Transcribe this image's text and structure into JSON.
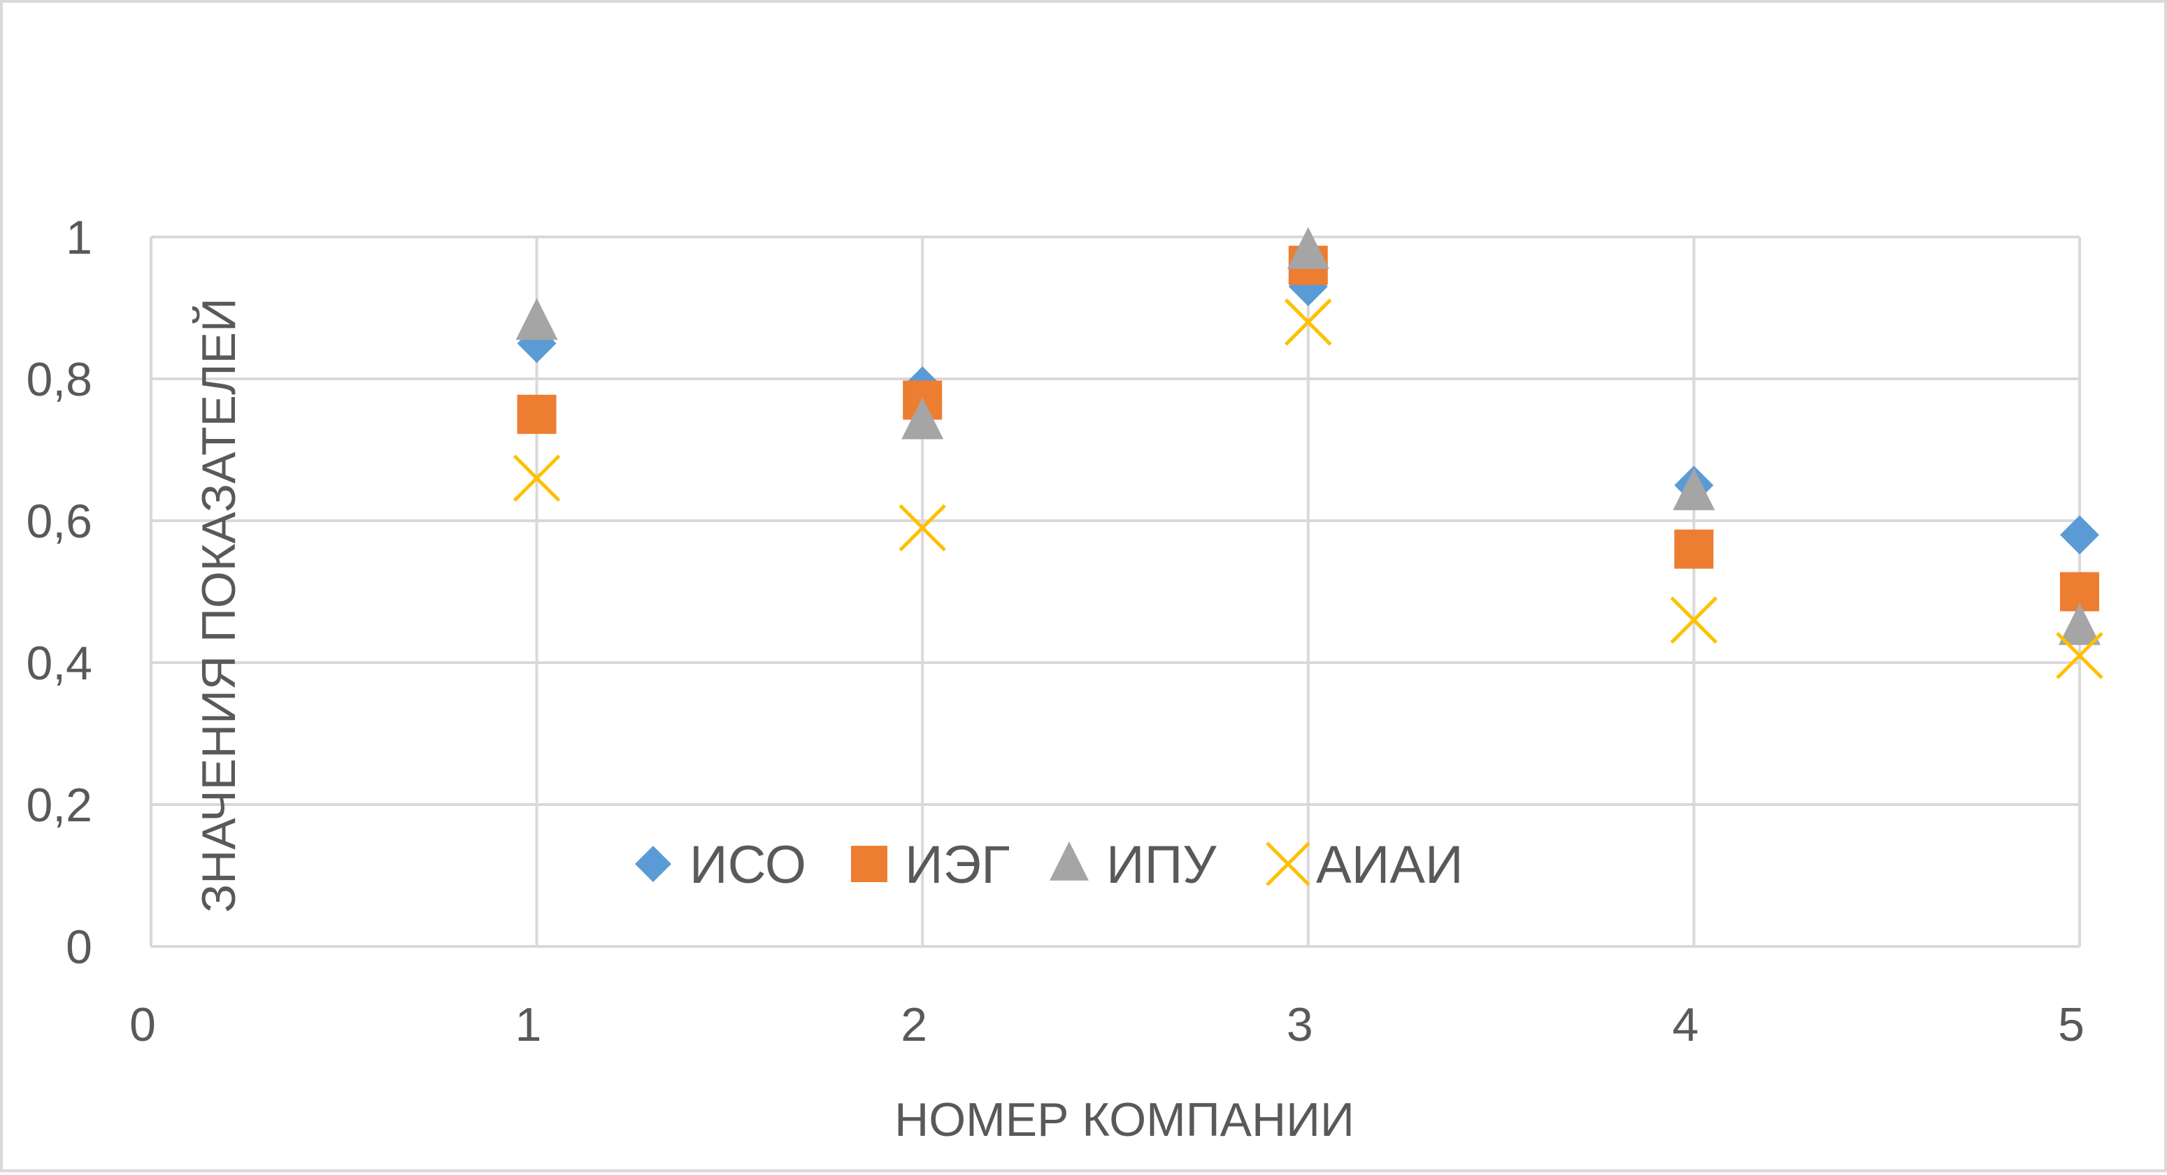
{
  "chart_data": {
    "type": "scatter",
    "title": "",
    "xlabel": "НОМЕР КОМПАНИИ",
    "ylabel": "ЗНАЧЕНИЯ ПОКАЗАТЕЛЕЙ",
    "xlim": [
      0,
      5
    ],
    "ylim": [
      0,
      1
    ],
    "x_ticks": [
      0,
      1,
      2,
      3,
      4,
      5
    ],
    "x_tick_labels": [
      "0",
      "1",
      "2",
      "3",
      "4",
      "5"
    ],
    "y_ticks": [
      0,
      0.2,
      0.4,
      0.6,
      0.8,
      1
    ],
    "y_tick_labels": [
      "0",
      "0,2",
      "0,4",
      "0,6",
      "0,8",
      "1"
    ],
    "grid": true,
    "legend_position": "bottom-center",
    "series": [
      {
        "name": "ИСО",
        "marker": "diamond",
        "color": "#5B9BD5",
        "x": [
          1,
          2,
          3,
          4,
          5
        ],
        "y": [
          0.85,
          0.79,
          0.93,
          0.65,
          0.58
        ]
      },
      {
        "name": "ИЭГ",
        "marker": "square",
        "color": "#ED7D31",
        "x": [
          1,
          2,
          3,
          4,
          5
        ],
        "y": [
          0.75,
          0.77,
          0.96,
          0.56,
          0.5
        ]
      },
      {
        "name": "ИПУ",
        "marker": "triangle",
        "color": "#A5A5A5",
        "x": [
          1,
          2,
          3,
          4,
          5
        ],
        "y": [
          0.88,
          0.74,
          0.98,
          0.64,
          0.45
        ]
      },
      {
        "name": "АИАИ",
        "marker": "x",
        "color": "#FFC000",
        "x": [
          1,
          2,
          3,
          4,
          5
        ],
        "y": [
          0.66,
          0.59,
          0.88,
          0.46,
          0.41
        ]
      }
    ]
  }
}
